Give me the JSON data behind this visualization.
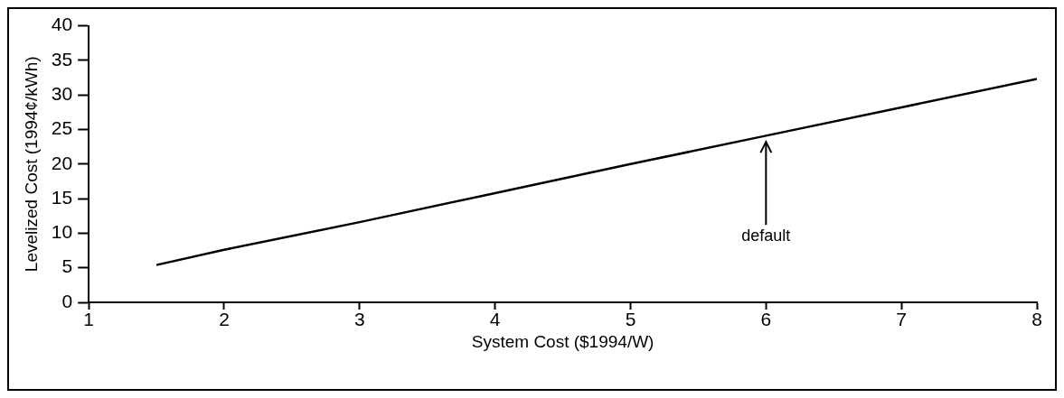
{
  "chart_data": {
    "type": "line",
    "xlabel": "System Cost ($1994/W)",
    "ylabel": "Levelized Cost (1994¢/kWh)",
    "x": [
      1.5,
      2,
      3,
      4,
      5,
      6,
      7,
      8
    ],
    "series": [
      {
        "color": "#000000",
        "values": [
          5.4,
          7.6,
          11.6,
          15.8,
          20,
          24.1,
          28.2,
          32.3
        ]
      }
    ],
    "xlim": [
      1,
      8
    ],
    "xticks": [
      1,
      2,
      3,
      4,
      5,
      6,
      7,
      8
    ],
    "ylim": [
      0,
      40
    ],
    "yticks": [
      0,
      5,
      10,
      15,
      20,
      25,
      30,
      35,
      40
    ],
    "grid": false,
    "legend": false,
    "marker": "none",
    "line_style": "solid",
    "annotations": [
      {
        "text": "default",
        "x": 6,
        "y": 24
      }
    ]
  }
}
